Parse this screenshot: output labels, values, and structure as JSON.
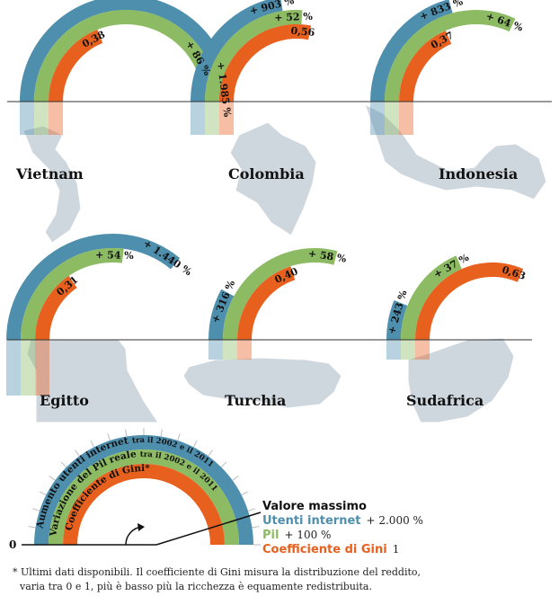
{
  "chart_data": {
    "type": "radial-bar",
    "colors": {
      "internet": "#4f8fae",
      "pil": "#8dbb63",
      "gini": "#e8601e",
      "map": "#cfd7de",
      "line": "#333333"
    },
    "countries": [
      {
        "name": "Vietnam",
        "internet": 1985,
        "internet_label": "+ 1.985 %",
        "pil": 86,
        "pil_label": "+ 86 %",
        "gini": 0.38,
        "gini_label": "0,38"
      },
      {
        "name": "Colombia",
        "internet": 903,
        "internet_label": "+ 903 %",
        "pil": 52,
        "pil_label": "+ 52 %",
        "gini": 0.56,
        "gini_label": "0,56"
      },
      {
        "name": "Indonesia",
        "internet": 833,
        "internet_label": "+ 833 %",
        "pil": 64,
        "pil_label": "+ 64 %",
        "gini": 0.37,
        "gini_label": "0,37"
      },
      {
        "name": "Egitto",
        "internet": 1440,
        "internet_label": "+ 1.440 %",
        "pil": 54,
        "pil_label": "+ 54 %",
        "gini": 0.31,
        "gini_label": "0,31"
      },
      {
        "name": "Turchia",
        "internet": 316,
        "internet_label": "+ 316 %",
        "pil": 58,
        "pil_label": "+ 58 %",
        "gini": 0.4,
        "gini_label": "0,40"
      },
      {
        "name": "Sudafrica",
        "internet": 243,
        "internet_label": "+ 243 %",
        "pil": 37,
        "pil_label": "+ 37 %",
        "gini": 0.63,
        "gini_label": "0,63"
      }
    ],
    "key": {
      "ring_internet_main": "Aumento utenti internet",
      "ring_internet_sub": "tra il 2002 e il 2011",
      "ring_pil_main": "Variazione del Pil reale",
      "ring_pil_sub": "tra il 2002 e il 2011",
      "ring_gini_main": "Coefficiente di Gini*",
      "zero_label": "0"
    },
    "legend": {
      "title": "Valore massimo",
      "items": [
        {
          "name": "Utenti internet",
          "value": "+ 2.000 %",
          "color": "#4f8fae",
          "max": 2000
        },
        {
          "name": "Pil",
          "value": "+ 100 %",
          "color": "#8dbb63",
          "max": 100
        },
        {
          "name": "Coefficiente di Gini",
          "value": "1",
          "color": "#e8601e",
          "max": 1
        }
      ]
    },
    "footnote": {
      "line1": "* Ultimi dati disponibili. Il coefficiente di Gini misura la distribuzione del reddito,",
      "line2": "varia tra 0 e 1, più è basso più la ricchezza è equamente redistribuita."
    }
  }
}
